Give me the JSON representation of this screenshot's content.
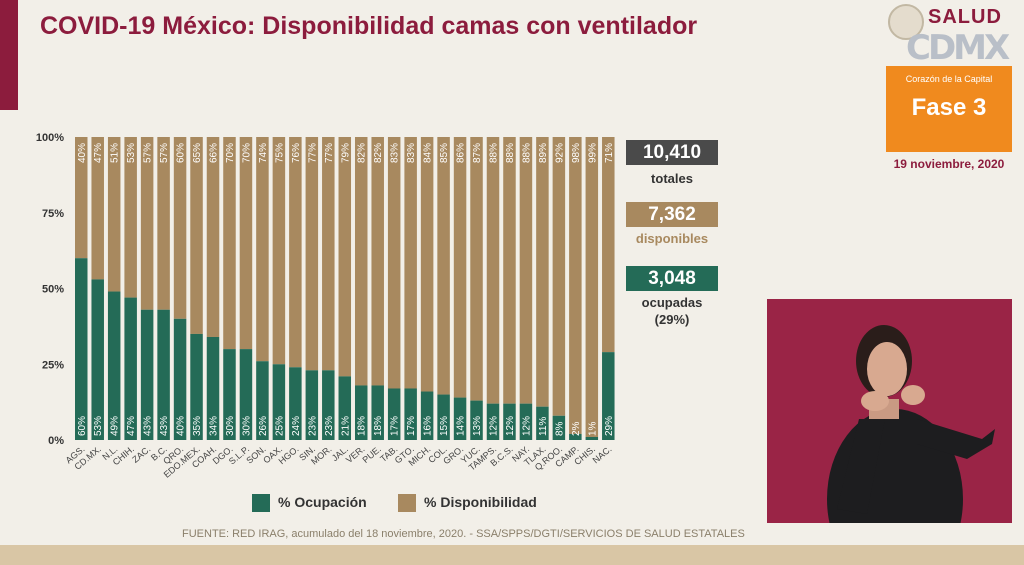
{
  "header": {
    "title": "COVID-19 México: Disponibilidad camas con ventilador"
  },
  "branding": {
    "salud": "SALUD",
    "cdmx_mark": "CDMX",
    "fase_subtitle": "Corazón de la Capital",
    "fase_label": "Fase 3",
    "date": "19 noviembre, 2020"
  },
  "stats": {
    "total_value": "10,410",
    "total_label": "totales",
    "available_value": "7,362",
    "available_label": "disponibles",
    "occupied_value": "3,048",
    "occupied_label": "ocupadas",
    "occupied_pct": "(29%)"
  },
  "legend": {
    "occupancy": "% Ocupación",
    "availability": "% Disponibilidad"
  },
  "source": "FUENTE: RED IRAG, acumulado del 18 noviembre, 2020. - SSA/SPPS/DGTI/SERVICIOS DE SALUD ESTATALES",
  "colors": {
    "occupancy": "#246b57",
    "availability": "#a8895f",
    "title": "#8c1c3d",
    "total_box": "#4a4a4a",
    "fase": "#f08a1e"
  },
  "chart_data": {
    "type": "bar",
    "stacked": true,
    "categories": [
      "AGS.",
      "CD.MX.",
      "N.L.",
      "CHIH.",
      "ZAC.",
      "B.C.",
      "QRO.",
      "EDO.MEX.",
      "COAH.",
      "DGO.",
      "S.L.P.",
      "SON.",
      "OAX.",
      "HGO.",
      "SIN.",
      "MOR.",
      "JAL.",
      "VER.",
      "PUE.",
      "TAB.",
      "GTO.",
      "MICH.",
      "COL.",
      "GRO.",
      "YUC.",
      "TAMPS.",
      "B.C.S.",
      "NAY.",
      "TLAX.",
      "Q.ROO.",
      "CAMP.",
      "CHIS.",
      "NAC."
    ],
    "series": [
      {
        "name": "% Ocupación",
        "values": [
          60,
          53,
          49,
          47,
          43,
          43,
          40,
          35,
          34,
          30,
          30,
          26,
          25,
          24,
          23,
          23,
          21,
          18,
          18,
          17,
          17,
          16,
          15,
          14,
          13,
          12,
          12,
          12,
          11,
          8,
          2,
          1,
          29
        ]
      },
      {
        "name": "% Disponibilidad",
        "values": [
          40,
          47,
          51,
          53,
          57,
          57,
          60,
          65,
          66,
          70,
          70,
          74,
          75,
          76,
          77,
          77,
          79,
          82,
          82,
          83,
          83,
          84,
          85,
          86,
          87,
          88,
          88,
          88,
          89,
          92,
          98,
          99,
          71
        ]
      }
    ],
    "y_ticks": [
      "0%",
      "25%",
      "50%",
      "75%",
      "100%"
    ],
    "ylim": [
      0,
      100
    ],
    "legend_position": "bottom"
  }
}
